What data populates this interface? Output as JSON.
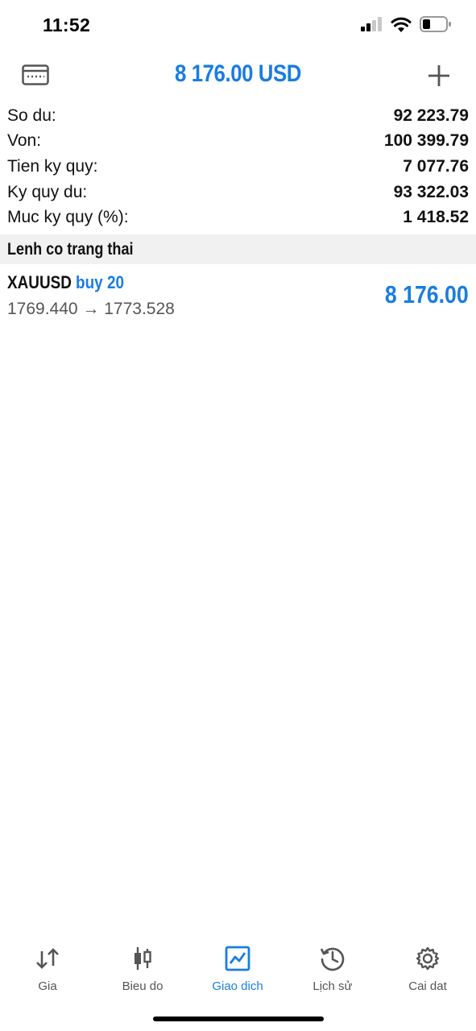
{
  "status_bar": {
    "time": "11:52"
  },
  "header": {
    "title": "8 176.00 USD"
  },
  "summary": [
    {
      "label": "So du:",
      "value": "92 223.79"
    },
    {
      "label": "Von:",
      "value": "100 399.79"
    },
    {
      "label": "Tien ky quy:",
      "value": "7 077.76"
    },
    {
      "label": "Ky quy du:",
      "value": "93 322.03"
    },
    {
      "label": "Muc ky quy (%):",
      "value": "1 418.52"
    }
  ],
  "positions_section": {
    "title": "Lenh co trang thai"
  },
  "positions": [
    {
      "symbol": "XAUUSD",
      "side": "buy 20",
      "prices": "1769.440 → 1773.528",
      "profit": "8 176.00"
    }
  ],
  "tabs": [
    {
      "label": "Gia",
      "icon": "quotes-arrows-icon"
    },
    {
      "label": "Bieu do",
      "icon": "candlestick-icon"
    },
    {
      "label": "Giao dich",
      "icon": "trade-chart-icon",
      "active": true
    },
    {
      "label": "Lịch sử",
      "icon": "history-icon"
    },
    {
      "label": "Cai dat",
      "icon": "gear-icon"
    }
  ],
  "colors": {
    "accent": "#1a7de0",
    "text": "#111111",
    "muted": "#555555",
    "section_bg": "#f1f1f2"
  }
}
